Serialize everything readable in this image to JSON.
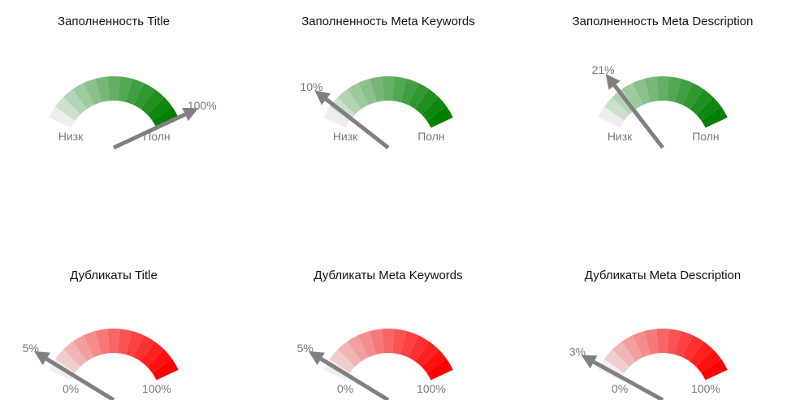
{
  "chart_data": [
    {
      "type": "gauge",
      "title": "Заполненность Title",
      "value": 100,
      "value_label": "100%",
      "lim": [
        0,
        100
      ],
      "ticks": [
        {
          "value": 0,
          "label": "Низк"
        },
        {
          "value": 100,
          "label": "Полн"
        }
      ],
      "color": "#008000"
    },
    {
      "type": "gauge",
      "title": "Заполненность Meta Keywords",
      "value": 10,
      "value_label": "10%",
      "lim": [
        0,
        100
      ],
      "ticks": [
        {
          "value": 0,
          "label": "Низк"
        },
        {
          "value": 100,
          "label": "Полн"
        }
      ],
      "color": "#008000"
    },
    {
      "type": "gauge",
      "title": "Заполненность Meta Description",
      "value": 21,
      "value_label": "21%",
      "lim": [
        0,
        100
      ],
      "ticks": [
        {
          "value": 0,
          "label": "Низк"
        },
        {
          "value": 100,
          "label": "Полн"
        }
      ],
      "color": "#008000"
    },
    {
      "type": "gauge",
      "title": "Дубликаты Title",
      "value": 5,
      "value_label": "5%",
      "lim": [
        0,
        100
      ],
      "ticks": [
        {
          "value": 0,
          "label": "0%"
        },
        {
          "value": 100,
          "label": "100%"
        }
      ],
      "color": "#ff0000"
    },
    {
      "type": "gauge",
      "title": "Дубликаты Meta Keywords",
      "value": 5,
      "value_label": "5%",
      "lim": [
        0,
        100
      ],
      "ticks": [
        {
          "value": 0,
          "label": "0%"
        },
        {
          "value": 100,
          "label": "100%"
        }
      ],
      "color": "#ff0000"
    },
    {
      "type": "gauge",
      "title": "Дубликаты Meta Description",
      "value": 3,
      "value_label": "3%",
      "lim": [
        0,
        100
      ],
      "ticks": [
        {
          "value": 0,
          "label": "0%"
        },
        {
          "value": 100,
          "label": "100%"
        }
      ],
      "color": "#ff0000"
    }
  ]
}
